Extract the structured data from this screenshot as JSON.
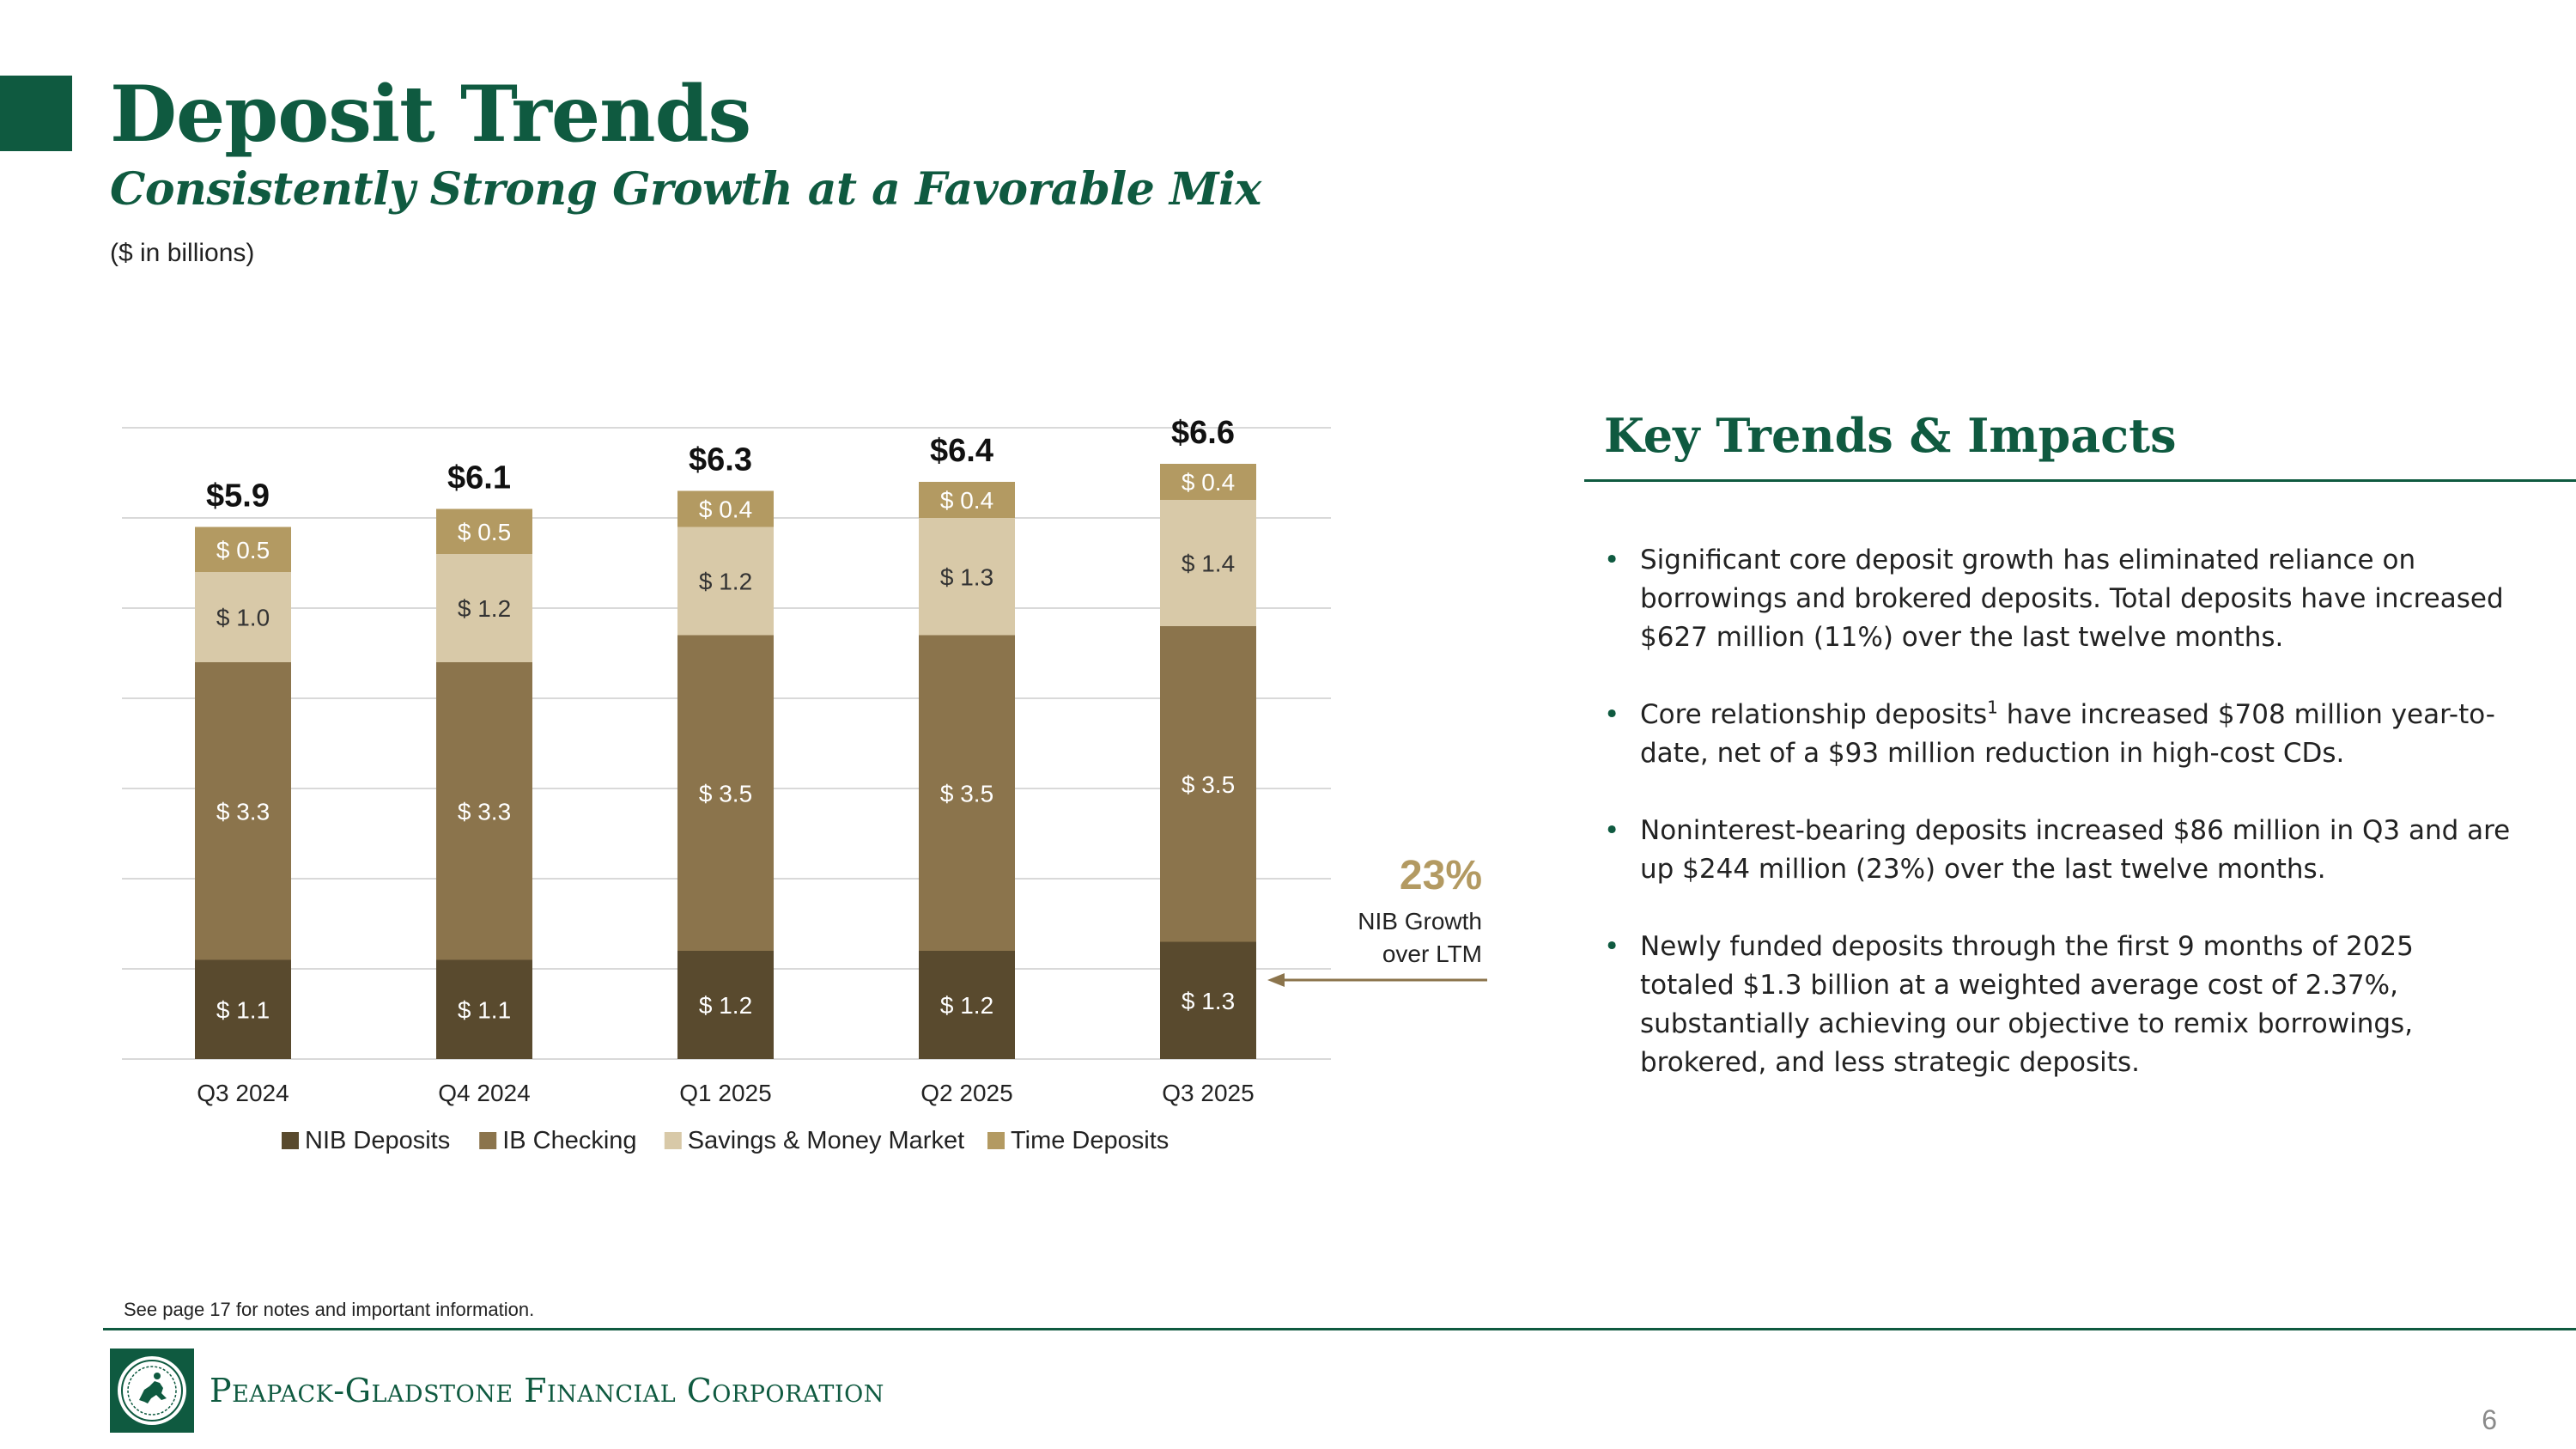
{
  "header": {
    "title": "Deposit Trends",
    "subtitle": "Consistently Strong Growth at a Favorable Mix",
    "units": "($ in billions)"
  },
  "chart_data": {
    "type": "bar",
    "stacked": true,
    "categories": [
      "Q3 2024",
      "Q4 2024",
      "Q1 2025",
      "Q2 2025",
      "Q3 2025"
    ],
    "series": [
      {
        "name": "NIB Deposits",
        "values": [
          1.1,
          1.1,
          1.2,
          1.2,
          1.3
        ],
        "color": "#594a2e",
        "labels": [
          "$ 1.1",
          "$ 1.1",
          "$ 1.2",
          "$ 1.2",
          "$ 1.3"
        ]
      },
      {
        "name": "IB Checking",
        "values": [
          3.3,
          3.3,
          3.5,
          3.5,
          3.5
        ],
        "color": "#8b744c",
        "labels": [
          "$ 3.3",
          "$ 3.3",
          "$ 3.5",
          "$ 3.5",
          "$ 3.5"
        ]
      },
      {
        "name": "Savings & Money Market",
        "values": [
          1.0,
          1.2,
          1.2,
          1.3,
          1.4
        ],
        "color": "#d8c9a8",
        "labels": [
          "$ 1.0",
          "$ 1.2",
          "$ 1.2",
          "$ 1.3",
          "$ 1.4"
        ]
      },
      {
        "name": "Time Deposits",
        "values": [
          0.5,
          0.5,
          0.4,
          0.4,
          0.4
        ],
        "color": "#b39a62",
        "labels": [
          "$ 0.5",
          "$ 0.5",
          "$ 0.4",
          "$ 0.4",
          "$ 0.4"
        ]
      }
    ],
    "totals": [
      5.9,
      6.1,
      6.3,
      6.4,
      6.6
    ],
    "total_labels": [
      "$5.9",
      "$6.1",
      "$6.3",
      "$6.4",
      "$6.6"
    ],
    "ylim": [
      0,
      7
    ],
    "grid": true,
    "legend": "bottom",
    "annotation": {
      "value": "23%",
      "line1": "NIB Growth",
      "line2": "over LTM",
      "color": "#b39a62",
      "arrow_color": "#8b744c"
    }
  },
  "panel": {
    "title": "Key Trends & Impacts",
    "bullets": [
      {
        "text": "Significant core deposit growth has eliminated reliance on borrowings and brokered deposits. Total deposits have increased $627 million (11%) over the last twelve months."
      },
      {
        "pre": "Core relationship deposits",
        "sup": "1",
        "post": " have increased $708 million year-to-date, net of a $93 million reduction in high-cost CDs."
      },
      {
        "text": "Noninterest-bearing deposits increased $86 million in Q3 and are up $244 million (23%) over the last twelve months."
      },
      {
        "text": "Newly funded deposits through the first 9 months of 2025 totaled $1.3 billion at a weighted average cost of 2.37%, substantially achieving our objective to remix borrowings, brokered, and less strategic deposits."
      }
    ]
  },
  "footer": {
    "note": "See page 17 for notes and important information.",
    "company": "Peapack-Gladstone Financial Corporation",
    "page_number": "6"
  },
  "colors": {
    "brand": "#0f5a40",
    "accent": "#b39a62"
  }
}
